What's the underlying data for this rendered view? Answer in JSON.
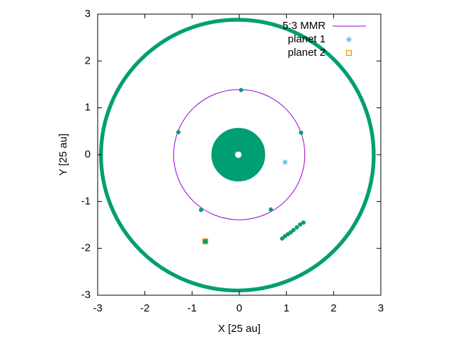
{
  "chart_data": {
    "type": "scatter",
    "xlabel": "X [25 au]",
    "ylabel": "Y [25 au]",
    "xlim": [
      -3,
      3
    ],
    "ylim": [
      -3,
      3
    ],
    "xticks": [
      -3,
      -2,
      -1,
      0,
      1,
      2,
      3
    ],
    "yticks": [
      -3,
      -2,
      -1,
      0,
      1,
      2,
      3
    ],
    "grid": false,
    "legend": "top-right",
    "rings": {
      "color": "#009e73",
      "annuli": [
        {
          "center_x": -0.04,
          "center_y": -0.01,
          "r_inner": 2.85,
          "r_outer": 2.93
        },
        {
          "center_x": -0.02,
          "center_y": 0.0,
          "r_inner": 0.07,
          "r_outer": 0.57
        }
      ]
    },
    "series": [
      {
        "name": "5:3 MMR",
        "color": "#9400d3",
        "marker": "line",
        "radius": 1.39
      },
      {
        "color": "#009e73",
        "marker": "dot",
        "x": [
          0.04,
          -1.29,
          1.31,
          -0.81,
          0.67,
          0.91,
          0.97,
          1.03,
          1.09,
          1.15,
          1.22,
          1.29,
          1.36
        ],
        "y": [
          1.38,
          0.48,
          0.47,
          -1.18,
          -1.17,
          -1.79,
          -1.74,
          -1.7,
          -1.66,
          -1.61,
          -1.55,
          -1.49,
          -1.45
        ]
      },
      {
        "name": "planet 1",
        "color": "#56b4e9",
        "marker": "asterisk",
        "x": [
          0.97
        ],
        "y": [
          -0.16
        ]
      },
      {
        "name": "planet 2",
        "color": "#e69f00",
        "marker": "square",
        "x": [
          -0.72
        ],
        "y": [
          -1.85
        ]
      }
    ]
  }
}
